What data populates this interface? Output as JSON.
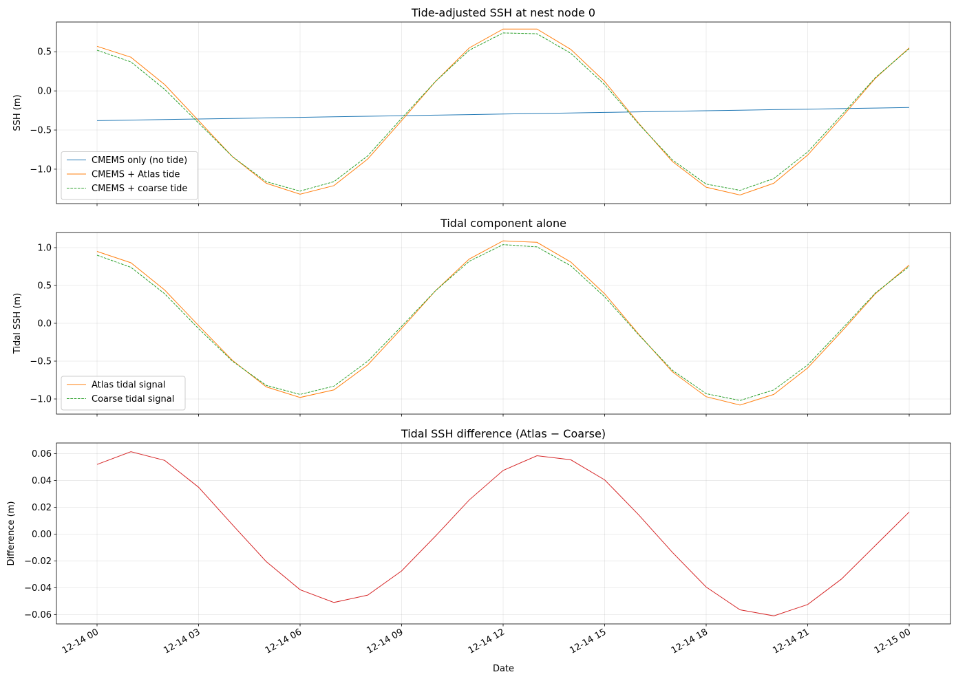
{
  "chart_data": [
    {
      "type": "line",
      "title": "Tide-adjusted SSH at nest node 0",
      "ylabel": "SSH (m)",
      "xlabel": "",
      "ylim": [
        -1.44,
        0.88
      ],
      "yticks": [
        0.5,
        0.0,
        -0.5,
        -1.0
      ],
      "ytick_labels": [
        "0.5",
        "0.0",
        "−0.5",
        "−1.0"
      ],
      "grid": true,
      "legend_position": "lower-left",
      "series": [
        {
          "name": "CMEMS only (no tide)",
          "color": "#1f77b4",
          "dash": "solid",
          "values": [
            -0.38,
            -0.373,
            -0.366,
            -0.359,
            -0.352,
            -0.345,
            -0.338,
            -0.331,
            -0.324,
            -0.317,
            -0.31,
            -0.303,
            -0.296,
            -0.289,
            -0.282,
            -0.275,
            -0.268,
            -0.261,
            -0.254,
            -0.247,
            -0.24,
            -0.233,
            -0.226,
            -0.219,
            -0.212
          ]
        },
        {
          "name": "CMEMS + Atlas tide",
          "color": "#ff7f0e",
          "dash": "solid",
          "values": [
            0.57,
            0.43,
            0.08,
            -0.38,
            -0.84,
            -1.18,
            -1.32,
            -1.21,
            -0.87,
            -0.38,
            0.12,
            0.55,
            0.79,
            0.79,
            0.53,
            0.12,
            -0.41,
            -0.9,
            -1.23,
            -1.33,
            -1.18,
            -0.82,
            -0.34,
            0.16,
            0.55
          ]
        },
        {
          "name": "CMEMS + coarse tide",
          "color": "#2ca02c",
          "dash": "dashed",
          "values": [
            0.52,
            0.37,
            0.02,
            -0.41,
            -0.84,
            -1.16,
            -1.28,
            -1.16,
            -0.83,
            -0.35,
            0.12,
            0.52,
            0.74,
            0.73,
            0.48,
            0.08,
            -0.42,
            -0.88,
            -1.19,
            -1.27,
            -1.12,
            -0.78,
            -0.31,
            0.17,
            0.54
          ]
        }
      ]
    },
    {
      "type": "line",
      "title": "Tidal component alone",
      "ylabel": "Tidal SSH (m)",
      "xlabel": "",
      "ylim": [
        -1.2,
        1.2
      ],
      "yticks": [
        1.0,
        0.5,
        0.0,
        -0.5,
        -1.0
      ],
      "ytick_labels": [
        "1.0",
        "0.5",
        "0.0",
        "−0.5",
        "−1.0"
      ],
      "grid": true,
      "legend_position": "lower-left",
      "series": [
        {
          "name": "Atlas tidal signal",
          "color": "#ff7f0e",
          "dash": "solid",
          "values": [
            0.95,
            0.8,
            0.44,
            -0.03,
            -0.49,
            -0.84,
            -0.98,
            -0.88,
            -0.55,
            -0.07,
            0.43,
            0.85,
            1.09,
            1.07,
            0.81,
            0.39,
            -0.14,
            -0.64,
            -0.97,
            -1.08,
            -0.94,
            -0.59,
            -0.11,
            0.39,
            0.77
          ]
        },
        {
          "name": "Coarse tidal signal",
          "color": "#2ca02c",
          "dash": "dashed",
          "values": [
            0.9,
            0.74,
            0.39,
            -0.07,
            -0.5,
            -0.82,
            -0.94,
            -0.83,
            -0.5,
            -0.04,
            0.43,
            0.82,
            1.04,
            1.01,
            0.76,
            0.35,
            -0.15,
            -0.62,
            -0.93,
            -1.02,
            -0.88,
            -0.55,
            -0.08,
            0.4,
            0.75
          ]
        }
      ]
    },
    {
      "type": "line",
      "title": "Tidal SSH difference (Atlas − Coarse)",
      "ylabel": "Difference (m)",
      "xlabel": "Date",
      "ylim": [
        -0.067,
        0.068
      ],
      "yticks": [
        0.06,
        0.04,
        0.02,
        0.0,
        -0.02,
        -0.04,
        -0.06
      ],
      "ytick_labels": [
        "0.06",
        "0.04",
        "0.02",
        "0.00",
        "−0.02",
        "−0.04",
        "−0.06"
      ],
      "grid": true,
      "series": [
        {
          "name": "",
          "color": "#d62728",
          "dash": "solid",
          "values": [
            0.052,
            0.0615,
            0.055,
            0.035,
            0.007,
            -0.0205,
            -0.0415,
            -0.051,
            -0.0455,
            -0.0275,
            -0.0015,
            0.0255,
            0.0475,
            0.0585,
            0.0555,
            0.0405,
            0.0145,
            -0.0135,
            -0.0395,
            -0.0565,
            -0.061,
            -0.0525,
            -0.0335,
            -0.0085,
            0.0165
          ]
        }
      ]
    }
  ],
  "x_axis": {
    "start": "2024-12-14 00:00",
    "end": "2024-12-15 00:00",
    "step": "1 hour",
    "tick_labels": [
      "12-14 00",
      "12-14 03",
      "12-14 06",
      "12-14 09",
      "12-14 12",
      "12-14 15",
      "12-14 18",
      "12-14 21",
      "12-15 00"
    ]
  }
}
